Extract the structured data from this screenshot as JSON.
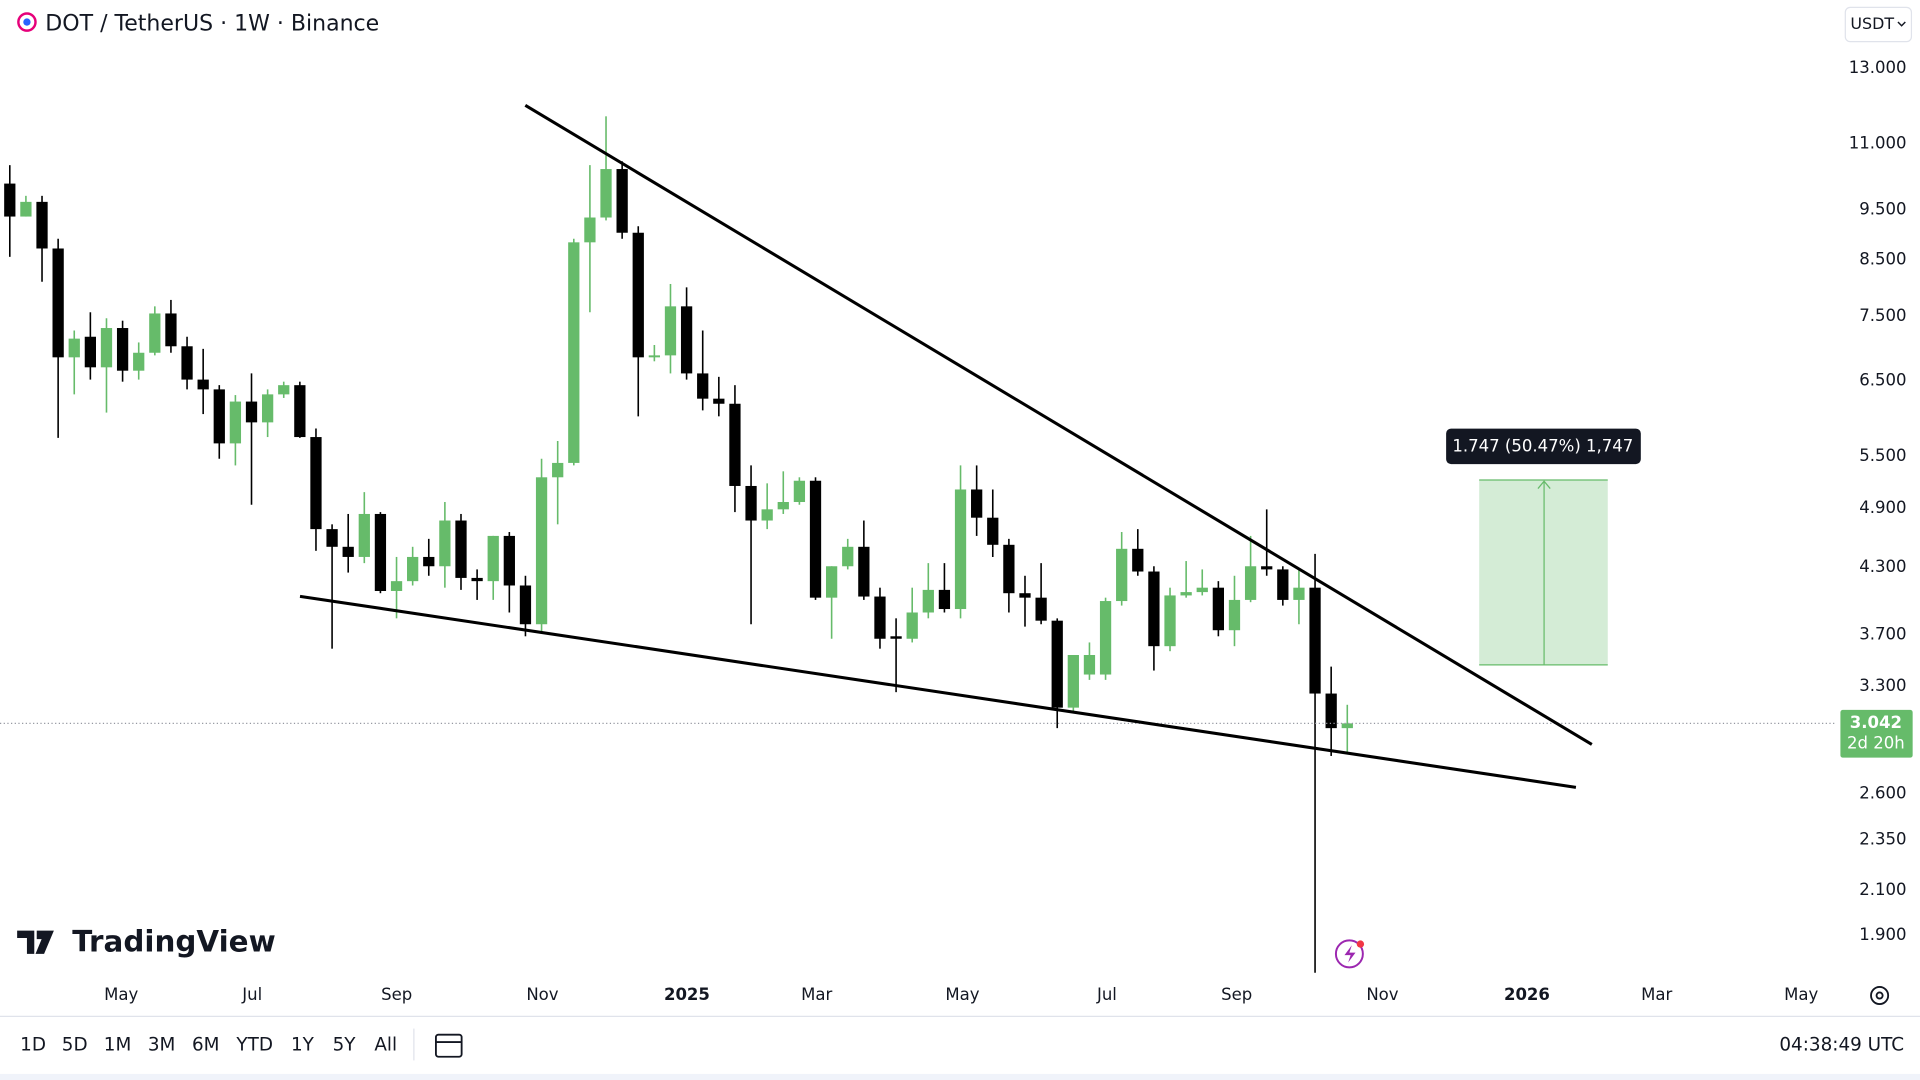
{
  "header": {
    "title": "DOT / TetherUS · 1W · Binance",
    "currency": "USDT"
  },
  "brand": "TradingView",
  "toolbar": {
    "timeframes": [
      "1D",
      "5D",
      "1M",
      "3M",
      "6M",
      "YTD",
      "1Y",
      "5Y",
      "All"
    ],
    "clock": "04:38:49 UTC"
  },
  "chart_data": {
    "type": "candlestick",
    "yscale": "log",
    "grid": false,
    "up_color": "#66bb6a",
    "down_color": "#000000",
    "ylim": [
      1.747,
      15.13
    ],
    "yticks": [
      {
        "value": 13,
        "label": "13.000"
      },
      {
        "value": 11,
        "label": "11.000"
      },
      {
        "value": 9.5,
        "label": "9.500"
      },
      {
        "value": 8.5,
        "label": "8.500"
      },
      {
        "value": 7.5,
        "label": "7.500"
      },
      {
        "value": 6.5,
        "label": "6.500"
      },
      {
        "value": 5.5,
        "label": "5.500"
      },
      {
        "value": 4.9,
        "label": "4.900"
      },
      {
        "value": 4.3,
        "label": "4.300"
      },
      {
        "value": 3.7,
        "label": "3.700"
      },
      {
        "value": 3.3,
        "label": "3.300"
      },
      {
        "value": 2.6,
        "label": "2.600"
      },
      {
        "value": 2.35,
        "label": "2.350"
      },
      {
        "value": 2.1,
        "label": "2.100"
      },
      {
        "value": 1.9,
        "label": "1.900"
      }
    ],
    "x_axis_labels": [
      "May",
      "Jul",
      "Sep",
      "Nov",
      "2025",
      "Mar",
      "May",
      "Jul",
      "Sep",
      "Nov",
      "2026",
      "Mar",
      "May"
    ],
    "open": [
      10.07,
      9.36,
      9.67,
      8.72,
      6.85,
      7.17,
      6.7,
      7.31,
      6.65,
      6.92,
      7.55,
      7.02,
      6.52,
      6.38,
      5.66,
      6.21,
      5.93,
      6.31,
      6.44,
      5.74,
      4.68,
      4.5,
      4.4,
      4.84,
      4.08,
      4.17,
      4.4,
      4.31,
      4.77,
      4.2,
      4.17,
      4.61,
      4.13,
      3.79,
      5.25,
      5.42,
      8.84,
      9.34,
      10.4,
      9.03,
      6.85,
      6.88,
      7.67,
      6.61,
      6.25,
      6.18,
      5.15,
      4.77,
      4.89,
      4.97,
      5.21,
      4.02,
      4.31,
      4.5,
      4.03,
      3.69,
      3.67,
      3.89,
      4.09,
      3.92,
      5.11,
      4.8,
      4.52,
      4.06,
      4.02,
      3.82,
      3.15,
      3.39,
      3.39,
      3.99,
      4.48,
      4.26,
      3.61,
      4.04,
      4.07,
      4.11,
      3.74,
      4.0,
      4.31,
      4.28,
      4.0,
      4.11,
      3.25,
      3.01
    ],
    "high": [
      10.49,
      9.8,
      9.8,
      8.91,
      7.27,
      7.57,
      7.47,
      7.43,
      7.08,
      7.67,
      7.78,
      7.17,
      6.98,
      6.44,
      6.3,
      6.61,
      6.38,
      6.49,
      6.49,
      5.85,
      4.73,
      4.84,
      5.08,
      4.86,
      4.4,
      4.5,
      4.58,
      4.97,
      4.84,
      4.28,
      4.61,
      4.65,
      4.22,
      5.47,
      5.69,
      8.91,
      10.49,
      11.69,
      10.58,
      9.16,
      7.04,
      8.06,
      8.0,
      7.27,
      6.56,
      6.44,
      5.39,
      5.18,
      5.32,
      5.25,
      5.25,
      4.31,
      4.58,
      4.77,
      4.11,
      3.84,
      4.11,
      4.34,
      4.34,
      5.39,
      5.39,
      5.11,
      4.58,
      4.22,
      4.34,
      3.84,
      3.54,
      3.64,
      4.02,
      4.65,
      4.68,
      4.31,
      4.11,
      4.36,
      4.28,
      4.17,
      4.22,
      4.61,
      4.89,
      4.31,
      4.28,
      4.43,
      3.45,
      3.17
    ],
    "low": [
      8.56,
      9.36,
      8.1,
      5.73,
      6.31,
      6.52,
      6.06,
      6.49,
      6.52,
      6.88,
      6.92,
      6.38,
      6.04,
      5.47,
      5.39,
      4.94,
      5.74,
      6.26,
      5.73,
      4.46,
      3.59,
      4.25,
      4.34,
      4.06,
      3.84,
      4.13,
      4.22,
      4.11,
      4.09,
      4.0,
      4.0,
      3.89,
      3.69,
      3.71,
      4.73,
      5.39,
      7.57,
      9.28,
      8.91,
      6.01,
      6.79,
      6.61,
      6.52,
      6.09,
      6.01,
      4.86,
      3.79,
      4.68,
      4.84,
      4.94,
      4.0,
      3.67,
      4.28,
      4.0,
      3.59,
      3.26,
      3.64,
      3.84,
      3.89,
      3.84,
      4.61,
      4.4,
      3.89,
      3.77,
      3.79,
      3.01,
      3.11,
      3.35,
      3.35,
      3.95,
      4.22,
      3.42,
      3.57,
      4.02,
      4.04,
      3.69,
      3.61,
      3.98,
      4.22,
      3.95,
      3.79,
      1.75,
      2.83,
      2.85
    ],
    "close": [
      9.36,
      9.67,
      8.72,
      6.85,
      7.14,
      6.7,
      7.31,
      6.65,
      6.92,
      7.55,
      7.02,
      6.52,
      6.38,
      5.66,
      6.21,
      5.93,
      6.31,
      6.44,
      5.74,
      4.68,
      4.5,
      4.4,
      4.84,
      4.08,
      4.17,
      4.4,
      4.31,
      4.77,
      4.2,
      4.17,
      4.61,
      4.13,
      3.79,
      5.25,
      5.42,
      8.84,
      9.34,
      10.4,
      9.03,
      6.85,
      6.88,
      7.67,
      6.61,
      6.25,
      6.18,
      5.15,
      4.77,
      4.89,
      4.97,
      5.21,
      4.02,
      4.31,
      4.5,
      4.03,
      3.67,
      3.67,
      3.89,
      4.09,
      3.92,
      5.11,
      4.8,
      4.52,
      4.06,
      4.02,
      3.82,
      3.15,
      3.54,
      3.54,
      3.99,
      4.48,
      4.26,
      3.61,
      4.04,
      4.07,
      4.11,
      3.74,
      4.0,
      4.31,
      4.28,
      4.0,
      4.11,
      3.25,
      3.01,
      3.042
    ],
    "last_price_label": "3.042",
    "countdown": "2d 20h",
    "measure_label": "1.747 (50.47%) 1,747"
  }
}
